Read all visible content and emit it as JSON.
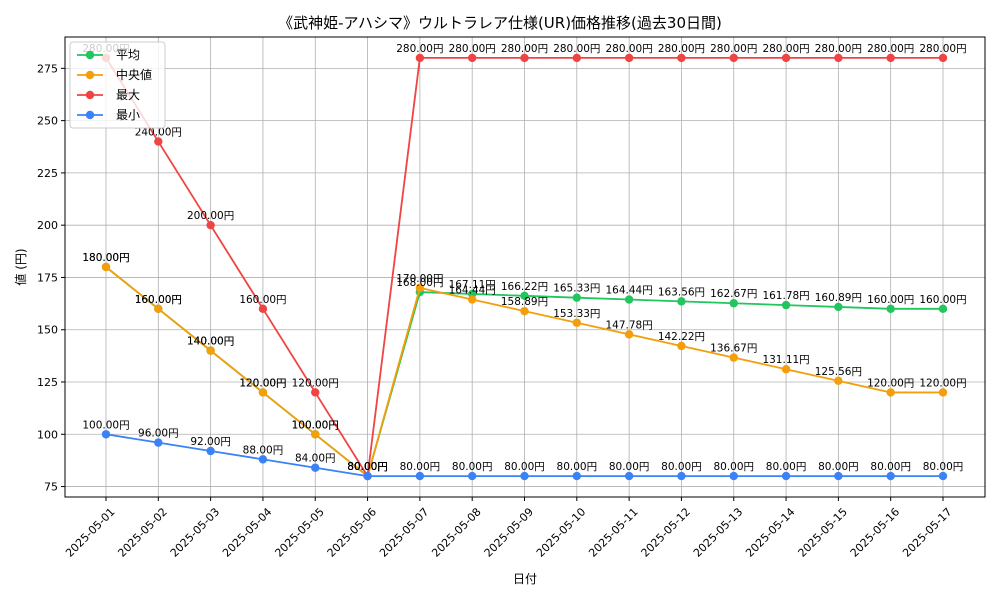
{
  "chart_data": {
    "type": "line",
    "title": "《武神姫-アハシマ》ウルトラレア仕様(UR)価格推移(過去30日間)",
    "xlabel": "日付",
    "ylabel": "値 (円)",
    "ylim": [
      70,
      290
    ],
    "yticks": [
      75,
      100,
      125,
      150,
      175,
      200,
      225,
      250,
      275
    ],
    "grid": true,
    "legend_position": "top-left",
    "value_suffix": "円",
    "categories": [
      "2025-05-01",
      "2025-05-02",
      "2025-05-03",
      "2025-05-04",
      "2025-05-05",
      "2025-05-06",
      "2025-05-07",
      "2025-05-08",
      "2025-05-09",
      "2025-05-10",
      "2025-05-11",
      "2025-05-12",
      "2025-05-13",
      "2025-05-14",
      "2025-05-15",
      "2025-05-16",
      "2025-05-17"
    ],
    "series": [
      {
        "name": "平均",
        "color": "#22c55e",
        "values": [
          180,
          160,
          140,
          120,
          100,
          80,
          168,
          167.11,
          166.22,
          165.33,
          164.44,
          163.56,
          162.67,
          161.78,
          160.89,
          160,
          160
        ]
      },
      {
        "name": "中央値",
        "color": "#f59e0b",
        "values": [
          180,
          160,
          140,
          120,
          100,
          80,
          170,
          164.44,
          158.89,
          153.33,
          147.78,
          142.22,
          136.67,
          131.11,
          125.56,
          120,
          120
        ]
      },
      {
        "name": "最大",
        "color": "#ef4444",
        "values": [
          280,
          240,
          200,
          160,
          120,
          80,
          280,
          280,
          280,
          280,
          280,
          280,
          280,
          280,
          280,
          280,
          280
        ]
      },
      {
        "name": "最小",
        "color": "#3b82f6",
        "values": [
          100,
          96,
          92,
          88,
          84,
          80,
          80,
          80,
          80,
          80,
          80,
          80,
          80,
          80,
          80,
          80,
          80
        ]
      }
    ]
  }
}
